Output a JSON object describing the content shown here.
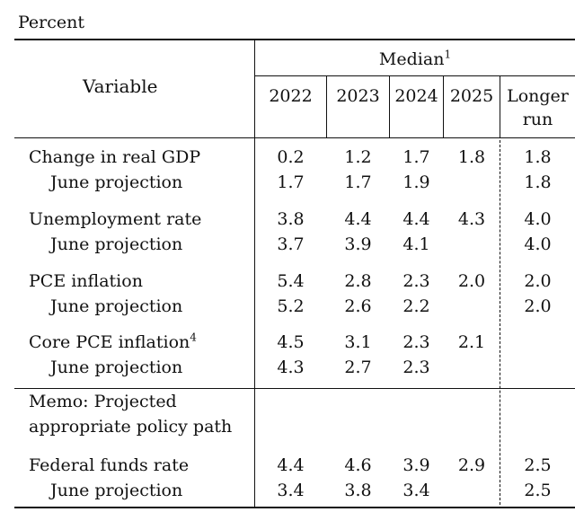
{
  "unit_label": "Percent",
  "header": {
    "variable": "Variable",
    "median": "Median",
    "median_note": "1",
    "years": [
      "2022",
      "2023",
      "2024",
      "2025"
    ],
    "longer_run_1": "Longer",
    "longer_run_2": "run"
  },
  "rows": [
    {
      "label": "Change in real GDP",
      "note": "",
      "values": [
        "0.2",
        "1.2",
        "1.7",
        "1.8",
        "1.8"
      ]
    },
    {
      "label": "June projection",
      "note": "",
      "values": [
        "1.7",
        "1.7",
        "1.9",
        "",
        "1.8"
      ]
    },
    {
      "label": "Unemployment rate",
      "note": "",
      "values": [
        "3.8",
        "4.4",
        "4.4",
        "4.3",
        "4.0"
      ]
    },
    {
      "label": "June projection",
      "note": "",
      "values": [
        "3.7",
        "3.9",
        "4.1",
        "",
        "4.0"
      ]
    },
    {
      "label": "PCE inflation",
      "note": "",
      "values": [
        "5.4",
        "2.8",
        "2.3",
        "2.0",
        "2.0"
      ]
    },
    {
      "label": "June projection",
      "note": "",
      "values": [
        "5.2",
        "2.6",
        "2.2",
        "",
        "2.0"
      ]
    },
    {
      "label": "Core PCE inflation",
      "note": "4",
      "values": [
        "4.5",
        "3.1",
        "2.3",
        "2.1",
        ""
      ]
    },
    {
      "label": "June projection",
      "note": "",
      "values": [
        "4.3",
        "2.7",
        "2.3",
        "",
        ""
      ]
    },
    {
      "label": "Federal funds rate",
      "note": "",
      "values": [
        "4.4",
        "4.6",
        "3.9",
        "2.9",
        "2.5"
      ]
    },
    {
      "label": "June projection",
      "note": "",
      "values": [
        "3.4",
        "3.8",
        "3.4",
        "",
        "2.5"
      ]
    }
  ],
  "memo": {
    "line1": "Memo: Projected",
    "line2": "appropriate policy path"
  }
}
